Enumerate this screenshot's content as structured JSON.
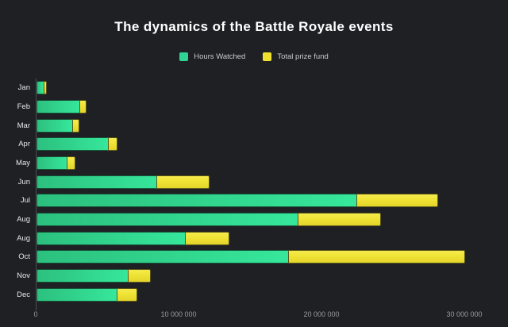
{
  "chart": {
    "title": "The dynamics of the Battle Royale events",
    "legend": [
      {
        "label": "Hours Watched",
        "color": "#2fd492"
      },
      {
        "label": "Total prize fund",
        "color": "#efe030"
      }
    ]
  },
  "chart_data": {
    "type": "bar",
    "orientation": "horizontal",
    "stacked": true,
    "title": "The dynamics of the Battle Royale events",
    "categories": [
      "Jan",
      "Feb",
      "Mar",
      "Apr",
      "May",
      "Jun",
      "Jul",
      "Aug",
      "Aug",
      "Oct",
      "Nov",
      "Dec"
    ],
    "series": [
      {
        "name": "Hours Watched",
        "color": "#2fd492",
        "values": [
          500000,
          3000000,
          2500000,
          5000000,
          2100000,
          8400000,
          22400000,
          18300000,
          10400000,
          17600000,
          6400000,
          5600000
        ]
      },
      {
        "name": "Total prize fund",
        "color": "#efe030",
        "values": [
          200000,
          500000,
          500000,
          650000,
          600000,
          3700000,
          5700000,
          5800000,
          3100000,
          12400000,
          1600000,
          1450000
        ]
      }
    ],
    "xlabel": "",
    "ylabel": "",
    "xlim": [
      0,
      30000000
    ],
    "x_ticks": [
      {
        "label": "0",
        "value": 0
      },
      {
        "label": "10 000 000",
        "value": 10000000
      },
      {
        "label": "20 000 000",
        "value": 20000000
      },
      {
        "label": "30 000 000",
        "value": 30000000
      }
    ],
    "legend_position": "top",
    "grid": false,
    "background": "#1e2024"
  }
}
